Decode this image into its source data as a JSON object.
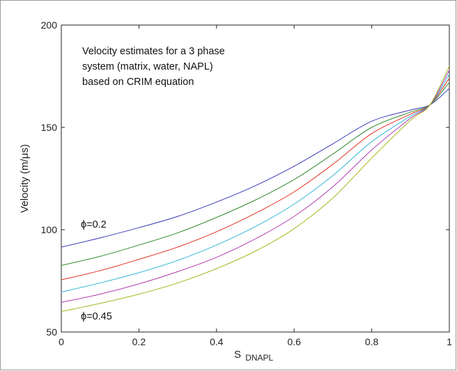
{
  "chart_data": {
    "type": "line",
    "title": "",
    "xlabel_main": "S",
    "xlabel_sub": "DNAPL",
    "ylabel": "Velocity (m/μs)",
    "xlim": [
      0,
      1
    ],
    "ylim": [
      50,
      200
    ],
    "x_ticks": [
      "0",
      "0.2",
      "0.4",
      "0.6",
      "0.8",
      "1"
    ],
    "y_ticks": [
      "50",
      "100",
      "150",
      "200"
    ],
    "grid": false,
    "annotation_lines": [
      "Velocity estimates for a 3 phase",
      "system (matrix, water, NAPL)",
      "based on CRIM equation"
    ],
    "curve_label_top": "ϕ=0.2",
    "curve_label_bottom": "ϕ=0.45",
    "x": [
      0,
      0.1,
      0.2,
      0.3,
      0.4,
      0.5,
      0.6,
      0.7,
      0.8,
      0.9,
      0.95,
      1.0
    ],
    "series": [
      {
        "color": "#3b3bb8",
        "values": [
          91.5,
          96.0,
          101.0,
          106.5,
          113.5,
          121.5,
          131.0,
          142.0,
          153.0,
          158.5,
          161.0,
          169.0
        ]
      },
      {
        "color": "#2f8a2f",
        "values": [
          82.5,
          87.0,
          92.5,
          98.5,
          106.0,
          114.5,
          124.5,
          137.0,
          150.0,
          157.5,
          161.0,
          172.0
        ]
      },
      {
        "color": "#e03020",
        "values": [
          75.5,
          80.0,
          85.5,
          91.5,
          99.0,
          108.0,
          118.5,
          132.0,
          147.0,
          156.5,
          161.0,
          174.0
        ]
      },
      {
        "color": "#35b6d8",
        "values": [
          69.5,
          74.0,
          79.0,
          85.0,
          92.5,
          101.5,
          112.5,
          126.5,
          143.0,
          155.5,
          161.0,
          176.0
        ]
      },
      {
        "color": "#b03cb0",
        "values": [
          64.5,
          68.5,
          73.5,
          79.5,
          86.5,
          95.5,
          106.5,
          121.0,
          139.0,
          154.5,
          161.0,
          178.0
        ]
      },
      {
        "color": "#a8b820",
        "values": [
          60.0,
          64.0,
          68.5,
          74.0,
          81.0,
          89.5,
          100.5,
          115.5,
          135.0,
          153.5,
          161.0,
          180.0
        ]
      }
    ]
  }
}
